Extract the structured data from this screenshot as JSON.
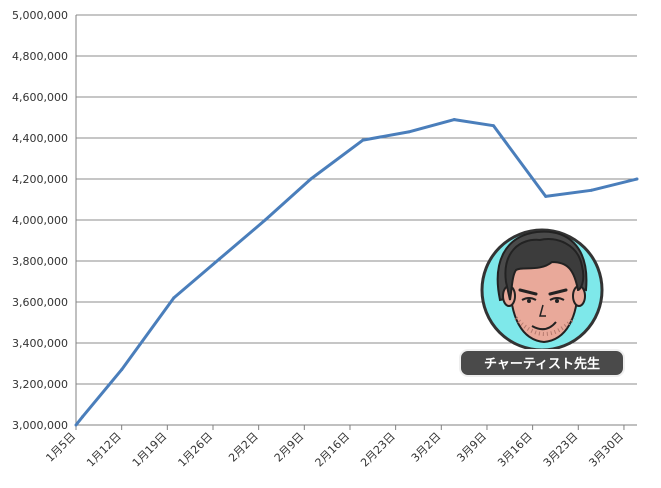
{
  "chart_data": {
    "type": "line",
    "title": "",
    "xlabel": "",
    "ylabel": "",
    "ylim": [
      3000000,
      5000000
    ],
    "y_ticks": [
      "3,000,000",
      "3,200,000",
      "3,400,000",
      "3,600,000",
      "3,800,000",
      "4,000,000",
      "4,200,000",
      "4,400,000",
      "4,600,000",
      "4,800,000",
      "5,000,000"
    ],
    "x_ticks": [
      "1月5日",
      "1月12日",
      "1月19日",
      "1月26日",
      "2月2日",
      "2月9日",
      "2月16日",
      "2月23日",
      "3月2日",
      "3月9日",
      "3月16日",
      "3月23日",
      "3月30日"
    ],
    "grid": true,
    "line_color": "#4a7ebb",
    "series": [
      {
        "x": [
          "1月5日",
          "1月6日",
          "1月12日",
          "1月20日",
          "1月27日",
          "2月3日",
          "2月10日",
          "2月18日",
          "2月25日",
          "3月4日",
          "3月10日",
          "3月18日",
          "3月25日",
          "4月1日"
        ],
        "values": [
          3000000,
          3040000,
          3270000,
          3620000,
          3810000,
          4000000,
          4200000,
          4390000,
          4430000,
          4490000,
          4460000,
          4115000,
          4145000,
          4200000
        ]
      }
    ]
  },
  "badge": {
    "label": "チャーティスト先生",
    "icon": "teacher-avatar-icon",
    "circle_color": "#7ee8ea"
  }
}
